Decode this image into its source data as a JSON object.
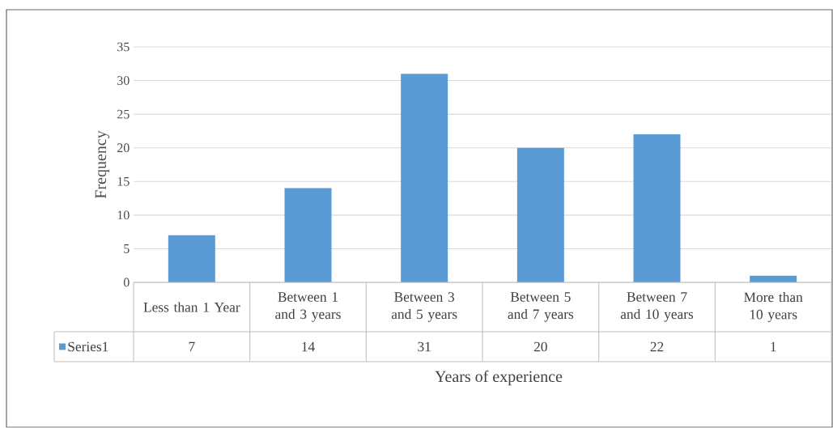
{
  "chart_data": {
    "type": "bar",
    "xlabel": "Years of experience",
    "ylabel": "Frequency",
    "categories": [
      "Less than 1 Year",
      "Between 1 and 3 years",
      "Between 3 and 5 years",
      "Between 5 and 7 years",
      "Between 7 and 10 years",
      "More than 10 years"
    ],
    "series": [
      {
        "name": "Series1",
        "color": "#5b9bd5",
        "values": [
          7,
          14,
          31,
          20,
          22,
          1
        ]
      }
    ],
    "ylim": [
      0,
      35
    ],
    "yticks": [
      0,
      5,
      10,
      15,
      20,
      25,
      30,
      35
    ],
    "grid": "y",
    "data_labels": true
  }
}
